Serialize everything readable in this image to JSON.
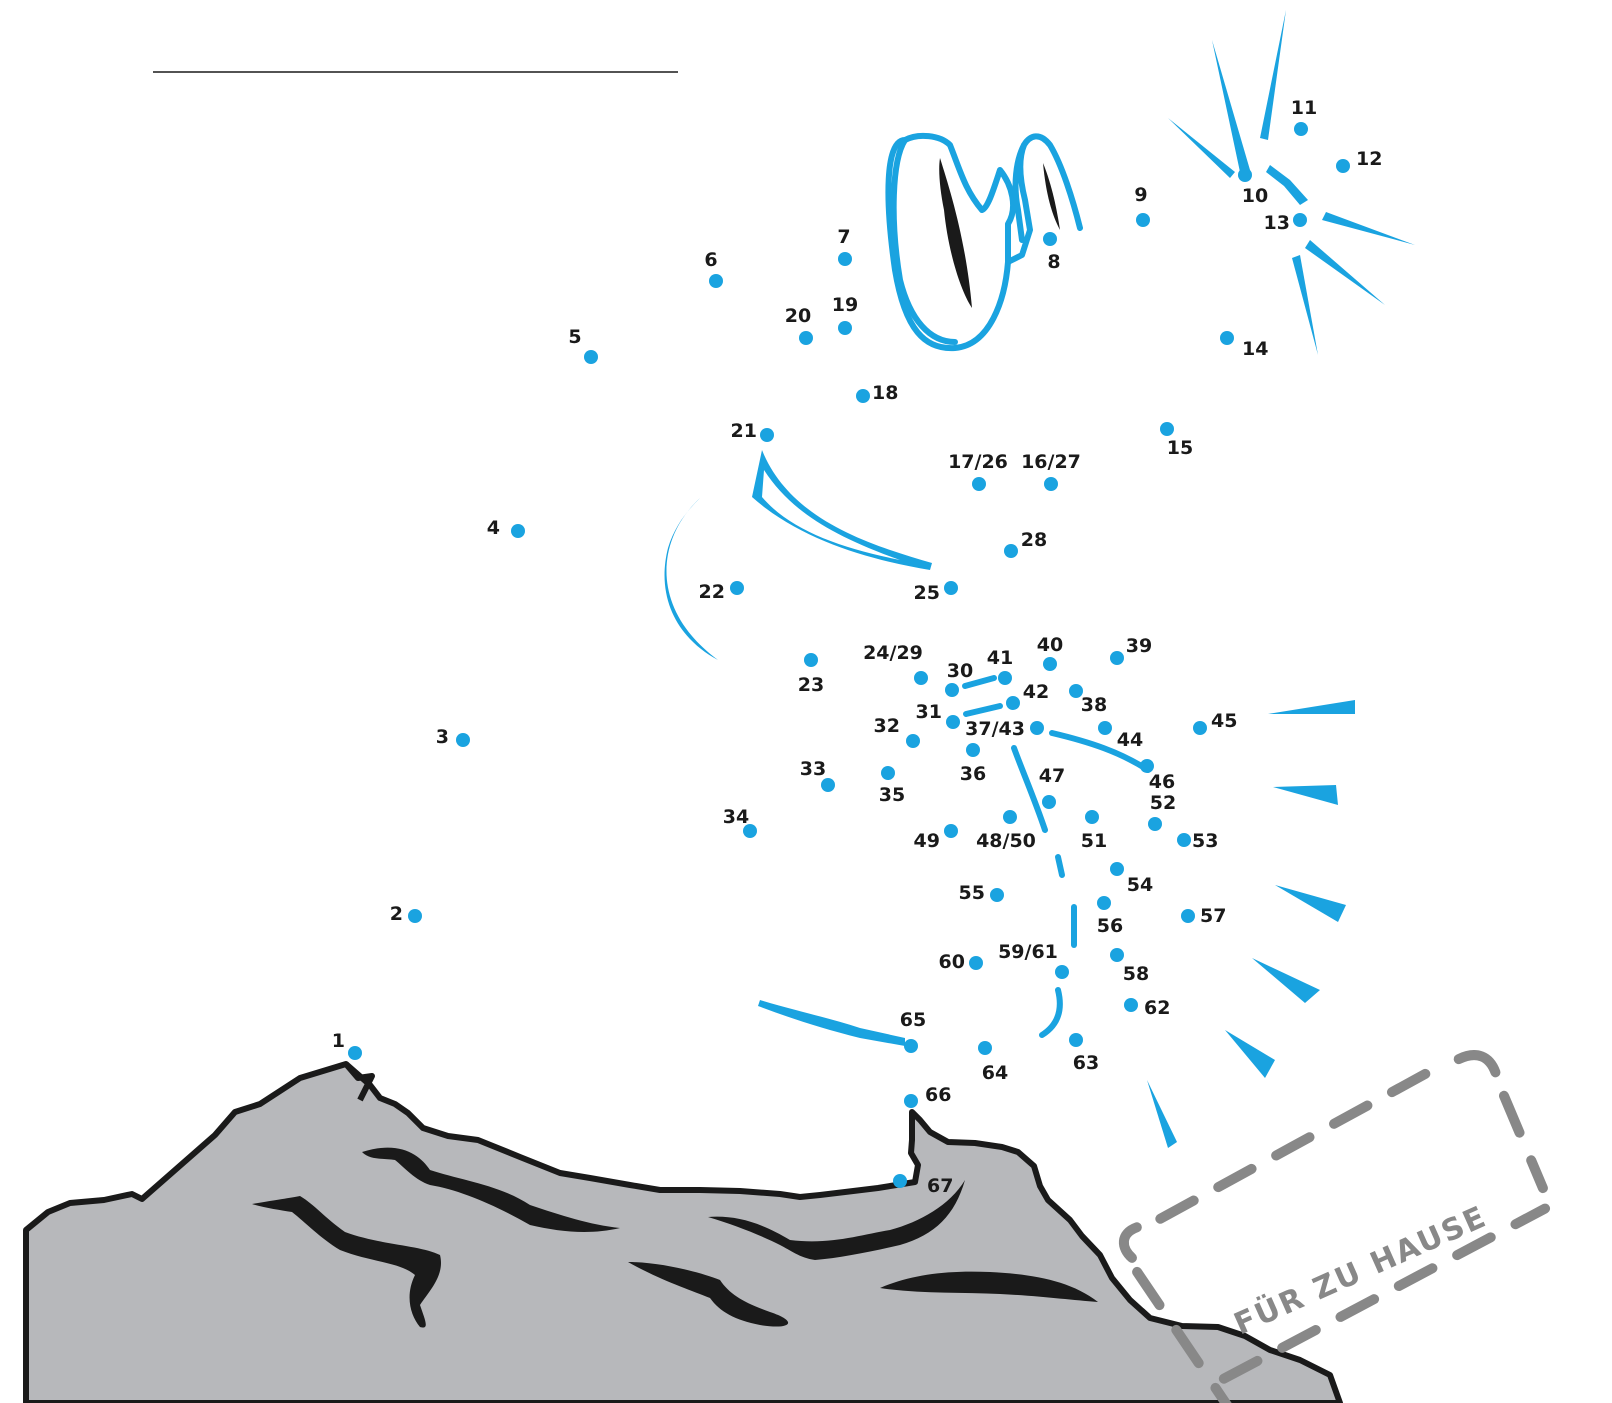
{
  "name_line": "",
  "stamp": {
    "text": "FÜR ZU HAUSE"
  },
  "colors": {
    "accent": "#1aa3e0",
    "rock": "#b7b8bb",
    "outline": "#1a1a1a",
    "stamp": "#888888"
  },
  "dots": [
    {
      "label": "1"
    },
    {
      "label": "2"
    },
    {
      "label": "3"
    },
    {
      "label": "4"
    },
    {
      "label": "5"
    },
    {
      "label": "6"
    },
    {
      "label": "7"
    },
    {
      "label": "8"
    },
    {
      "label": "9"
    },
    {
      "label": "10"
    },
    {
      "label": "11"
    },
    {
      "label": "12"
    },
    {
      "label": "13"
    },
    {
      "label": "14"
    },
    {
      "label": "15"
    },
    {
      "label": "16/27"
    },
    {
      "label": "17/26"
    },
    {
      "label": "18"
    },
    {
      "label": "19"
    },
    {
      "label": "20"
    },
    {
      "label": "21"
    },
    {
      "label": "22"
    },
    {
      "label": "23"
    },
    {
      "label": "24/29"
    },
    {
      "label": "25"
    },
    {
      "label": "28"
    },
    {
      "label": "30"
    },
    {
      "label": "31"
    },
    {
      "label": "32"
    },
    {
      "label": "33"
    },
    {
      "label": "34"
    },
    {
      "label": "35"
    },
    {
      "label": "36"
    },
    {
      "label": "37/43"
    },
    {
      "label": "38"
    },
    {
      "label": "39"
    },
    {
      "label": "40"
    },
    {
      "label": "41"
    },
    {
      "label": "42"
    },
    {
      "label": "44"
    },
    {
      "label": "45"
    },
    {
      "label": "46"
    },
    {
      "label": "47"
    },
    {
      "label": "48/50"
    },
    {
      "label": "49"
    },
    {
      "label": "51"
    },
    {
      "label": "52"
    },
    {
      "label": "53"
    },
    {
      "label": "54"
    },
    {
      "label": "55"
    },
    {
      "label": "56"
    },
    {
      "label": "57"
    },
    {
      "label": "58"
    },
    {
      "label": "59/61"
    },
    {
      "label": "60"
    },
    {
      "label": "62"
    },
    {
      "label": "63"
    },
    {
      "label": "64"
    },
    {
      "label": "65"
    },
    {
      "label": "66"
    },
    {
      "label": "67"
    }
  ]
}
